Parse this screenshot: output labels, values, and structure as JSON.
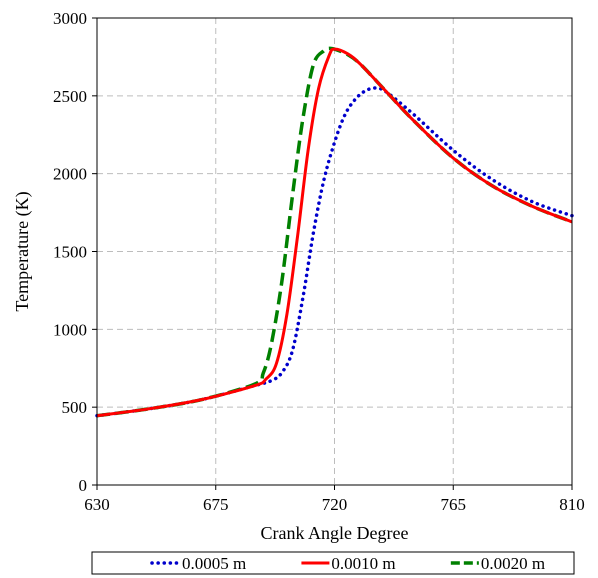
{
  "chart_data": {
    "type": "line",
    "title": "",
    "xlabel": "Crank Angle Degree",
    "ylabel": "Temperature (K)",
    "xlim": [
      630,
      810
    ],
    "ylim": [
      0,
      3000
    ],
    "xticks": [
      630,
      675,
      720,
      765,
      810
    ],
    "yticks": [
      0,
      500,
      1000,
      1500,
      2000,
      2500,
      3000
    ],
    "grid": true,
    "legend_position": "bottom",
    "series": [
      {
        "name": "0.0005 m",
        "color": "#0000CC",
        "style": "dotted",
        "x": [
          630,
          650,
          670,
          690,
          696,
          700,
          704,
          708,
          712,
          716,
          720,
          724,
          728,
          732,
          736,
          740,
          750,
          765,
          780,
          795,
          810
        ],
        "y": [
          445,
          490,
          550,
          640,
          670,
          720,
          860,
          1200,
          1620,
          1960,
          2200,
          2380,
          2480,
          2535,
          2550,
          2520,
          2380,
          2150,
          1960,
          1820,
          1730
        ]
      },
      {
        "name": "0.0010 m",
        "color": "#FF0000",
        "style": "solid",
        "x": [
          630,
          650,
          670,
          690,
          694,
          698,
          702,
          706,
          710,
          714,
          718,
          720,
          725,
          730,
          740,
          750,
          765,
          780,
          795,
          810
        ],
        "y": [
          445,
          490,
          550,
          640,
          680,
          780,
          1100,
          1600,
          2150,
          2550,
          2760,
          2800,
          2770,
          2700,
          2520,
          2340,
          2100,
          1920,
          1790,
          1690
        ]
      },
      {
        "name": "0.0020 m",
        "color": "#008000",
        "style": "dashed",
        "x": [
          630,
          650,
          670,
          690,
          693,
          696,
          700,
          704,
          708,
          712,
          716,
          718,
          720,
          725,
          730,
          740,
          750,
          765,
          780,
          795,
          810
        ],
        "y": [
          445,
          490,
          550,
          650,
          720,
          900,
          1300,
          1850,
          2350,
          2700,
          2790,
          2805,
          2800,
          2765,
          2700,
          2520,
          2340,
          2100,
          1920,
          1790,
          1690
        ]
      }
    ]
  }
}
